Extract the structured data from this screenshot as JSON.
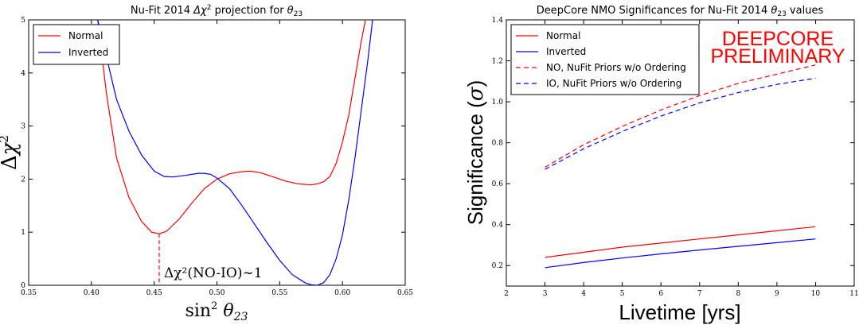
{
  "chart_data": [
    {
      "type": "line",
      "title": "Nu-Fit 2014 Δχ² projection for θ₂₃",
      "xlabel": "sin² θ₂₃",
      "ylabel": "Δχ²",
      "xlim": [
        0.35,
        0.65
      ],
      "ylim": [
        0,
        5
      ],
      "xticks": [
        "0.35",
        "0.40",
        "0.45",
        "0.50",
        "0.55",
        "0.60",
        "0.65"
      ],
      "yticks": [
        "0",
        "1",
        "2",
        "3",
        "4",
        "5"
      ],
      "legend_position": "top-left",
      "grid": false,
      "series": [
        {
          "name": "Normal",
          "color": "#ff0000",
          "dash": "solid",
          "x": [
            0.405,
            0.412,
            0.42,
            0.43,
            0.44,
            0.448,
            0.454,
            0.46,
            0.47,
            0.48,
            0.49,
            0.5,
            0.51,
            0.52,
            0.527,
            0.535,
            0.545,
            0.555,
            0.565,
            0.575,
            0.58,
            0.585,
            0.59,
            0.595,
            0.6,
            0.605,
            0.61,
            0.615,
            0.62
          ],
          "y": [
            5.0,
            3.6,
            2.4,
            1.65,
            1.2,
            1.0,
            0.97,
            1.02,
            1.25,
            1.55,
            1.82,
            2.0,
            2.1,
            2.14,
            2.15,
            2.12,
            2.04,
            1.96,
            1.91,
            1.89,
            1.91,
            1.95,
            2.05,
            2.3,
            2.7,
            3.2,
            3.9,
            4.6,
            5.2
          ]
        },
        {
          "name": "Inverted",
          "color": "#0000ff",
          "dash": "solid",
          "x": [
            0.405,
            0.41,
            0.415,
            0.42,
            0.43,
            0.44,
            0.45,
            0.458,
            0.465,
            0.475,
            0.485,
            0.49,
            0.495,
            0.5,
            0.51,
            0.52,
            0.53,
            0.54,
            0.55,
            0.56,
            0.57,
            0.575,
            0.58,
            0.585,
            0.59,
            0.595,
            0.6,
            0.605,
            0.61,
            0.615,
            0.62,
            0.625
          ],
          "y": [
            5.0,
            4.5,
            4.0,
            3.5,
            2.9,
            2.45,
            2.15,
            2.05,
            2.04,
            2.07,
            2.11,
            2.11,
            2.09,
            2.02,
            1.82,
            1.5,
            1.15,
            0.8,
            0.47,
            0.2,
            0.05,
            0.01,
            0.0,
            0.05,
            0.2,
            0.5,
            0.95,
            1.6,
            2.4,
            3.3,
            4.2,
            5.2
          ]
        }
      ],
      "annotations": [
        {
          "text": "Δχ²(NO-IO)∼1",
          "at_x": 0.454,
          "from_y": 0.97,
          "to_y": 0
        }
      ]
    },
    {
      "type": "line",
      "title": "DeepCore NMO Significances for Nu-Fit 2014 θ₂₃ values",
      "xlabel": "Livetime [yrs]",
      "ylabel": "Significance (σ)",
      "xlim": [
        2,
        11
      ],
      "ylim": [
        0.1,
        1.4
      ],
      "xticks": [
        "2",
        "3",
        "4",
        "5",
        "6",
        "7",
        "8",
        "9",
        "10",
        "11"
      ],
      "yticks": [
        "0.2",
        "0.4",
        "0.6",
        "0.8",
        "1.0",
        "1.2",
        "1.4"
      ],
      "legend_position": "top-left",
      "grid": false,
      "series": [
        {
          "name": "Normal",
          "color": "#ff0000",
          "dash": "solid",
          "x": [
            3,
            4,
            5,
            6,
            7,
            8,
            9,
            10
          ],
          "y": [
            0.24,
            0.265,
            0.29,
            0.31,
            0.33,
            0.35,
            0.37,
            0.39
          ]
        },
        {
          "name": "Inverted",
          "color": "#0000ff",
          "dash": "solid",
          "x": [
            3,
            4,
            5,
            6,
            7,
            8,
            9,
            10
          ],
          "y": [
            0.19,
            0.215,
            0.237,
            0.257,
            0.276,
            0.294,
            0.312,
            0.33
          ]
        },
        {
          "name": "NO, NuFit Priors w/o Ordering",
          "color": "#ff0000",
          "dash": "dashed",
          "x": [
            3,
            4,
            5,
            6,
            7,
            8,
            9,
            10
          ],
          "y": [
            0.68,
            0.79,
            0.88,
            0.96,
            1.03,
            1.09,
            1.135,
            1.18
          ]
        },
        {
          "name": "IO, NuFit Priors w/o Ordering",
          "color": "#0000ff",
          "dash": "dashed",
          "x": [
            3,
            4,
            5,
            6,
            7,
            8,
            9,
            10
          ],
          "y": [
            0.67,
            0.77,
            0.855,
            0.93,
            0.995,
            1.045,
            1.085,
            1.115
          ]
        }
      ],
      "watermark": [
        "DEEPCORE",
        "PRELIMINARY"
      ]
    }
  ]
}
